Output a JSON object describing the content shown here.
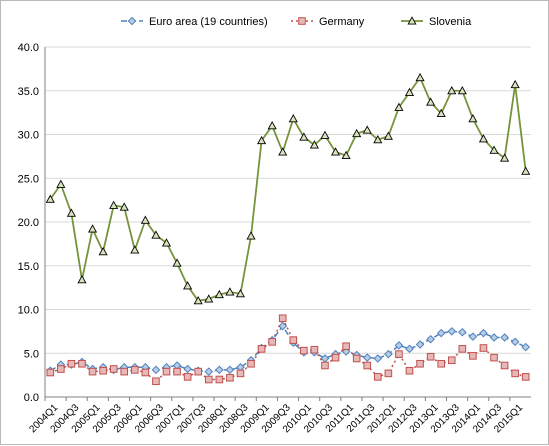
{
  "chart_data": {
    "type": "line",
    "title": "",
    "xlabel": "",
    "ylabel": "",
    "ylim": [
      0,
      40
    ],
    "yticks": [
      "0.0",
      "5.0",
      "10.0",
      "15.0",
      "20.0",
      "25.0",
      "30.0",
      "35.0",
      "40.0"
    ],
    "grid": true,
    "legend_position": "top",
    "x": [
      "2004Q1",
      "2004Q2",
      "2004Q3",
      "2004Q4",
      "2005Q1",
      "2005Q2",
      "2005Q3",
      "2005Q4",
      "2006Q1",
      "2006Q2",
      "2006Q3",
      "2006Q4",
      "2007Q1",
      "2007Q2",
      "2007Q3",
      "2007Q4",
      "2008Q1",
      "2008Q2",
      "2008Q3",
      "2008Q4",
      "2009Q1",
      "2009Q2",
      "2009Q3",
      "2009Q4",
      "2010Q1",
      "2010Q2",
      "2010Q3",
      "2010Q4",
      "2011Q1",
      "2011Q2",
      "2011Q3",
      "2011Q4",
      "2012Q1",
      "2012Q2",
      "2012Q3",
      "2012Q4",
      "2013Q1",
      "2013Q2",
      "2013Q3",
      "2013Q4",
      "2014Q1",
      "2014Q2",
      "2014Q3",
      "2014Q4",
      "2015Q1",
      "2015Q2"
    ],
    "xticks": [
      "2004Q1",
      "2004Q3",
      "2005Q1",
      "2005Q3",
      "2006Q1",
      "2006Q3",
      "2007Q1",
      "2007Q3",
      "2008Q1",
      "2008Q3",
      "2009Q1",
      "2009Q3",
      "2010Q1",
      "2010Q3",
      "2011Q1",
      "2011Q3",
      "2012Q1",
      "2012Q3",
      "2013Q1",
      "2013Q3",
      "2014Q1",
      "2014Q3",
      "2015Q1"
    ],
    "series": [
      {
        "name": "Euro area (19 countries)",
        "color": "#4f81bd",
        "marker": "diamond",
        "values": [
          3.0,
          3.7,
          3.7,
          4.0,
          3.2,
          3.4,
          3.1,
          3.4,
          3.4,
          3.4,
          3.1,
          3.4,
          3.6,
          3.2,
          3.0,
          2.9,
          3.1,
          3.1,
          3.4,
          4.2,
          5.6,
          6.5,
          8.1,
          6.2,
          5.1,
          5.1,
          4.4,
          4.9,
          5.2,
          4.8,
          4.5,
          4.4,
          4.9,
          5.9,
          5.5,
          6.0,
          6.6,
          7.3,
          7.5,
          7.4,
          6.9,
          7.3,
          6.8,
          6.8,
          6.3,
          5.7
        ]
      },
      {
        "name": "Germany",
        "color": "#c0504d",
        "marker": "square",
        "values": [
          2.8,
          3.2,
          3.8,
          3.8,
          2.9,
          3.0,
          3.2,
          2.9,
          3.1,
          2.8,
          1.8,
          2.9,
          2.9,
          2.3,
          2.9,
          2.0,
          2.0,
          2.2,
          2.7,
          3.8,
          5.5,
          6.3,
          9.0,
          6.5,
          5.3,
          5.4,
          3.6,
          4.5,
          5.8,
          4.4,
          3.6,
          2.3,
          2.7,
          4.9,
          3.0,
          3.8,
          4.6,
          3.8,
          4.2,
          5.5,
          4.7,
          5.6,
          4.5,
          3.6,
          2.7,
          2.3
        ]
      },
      {
        "name": "Slovenia",
        "color": "#77933c",
        "marker": "triangle",
        "values": [
          22.6,
          24.3,
          21.0,
          13.4,
          19.2,
          16.6,
          21.9,
          21.7,
          16.8,
          20.2,
          18.5,
          17.6,
          15.3,
          12.7,
          11.0,
          11.2,
          11.7,
          12.0,
          11.8,
          18.4,
          29.3,
          31.0,
          28.0,
          31.8,
          29.7,
          28.8,
          29.9,
          28.0,
          27.6,
          30.1,
          30.5,
          29.4,
          29.8,
          33.1,
          34.8,
          36.5,
          33.7,
          32.4,
          35.0,
          35.0,
          31.8,
          29.5,
          28.2,
          27.3,
          35.7,
          25.8
        ]
      }
    ]
  }
}
